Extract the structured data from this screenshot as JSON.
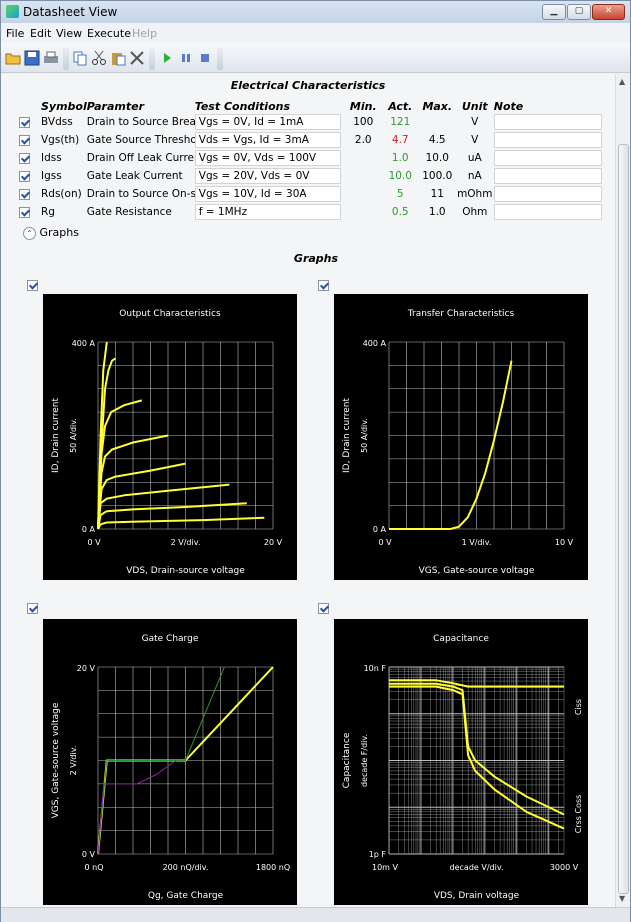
{
  "window": {
    "title": "Datasheet View"
  },
  "menu": [
    "File",
    "Edit",
    "View",
    "Execute",
    "Help"
  ],
  "toolbar_icons": [
    "open-folder-icon",
    "save-icon",
    "print-icon",
    "copy-icon",
    "cut-icon",
    "paste-icon",
    "delete-icon",
    "run-icon",
    "pause-icon",
    "stop-icon"
  ],
  "electrical": {
    "title": "Electrical Characteristics",
    "headers": {
      "symbol": "Symbol",
      "parameter": "Paramter",
      "conditions": "Test Conditions",
      "min": "Min.",
      "act": "Act.",
      "max": "Max.",
      "unit": "Unit",
      "note": "Note"
    },
    "rows": [
      {
        "symbol": "BVdss",
        "parameter": "Drain to Source Breakdo···",
        "conditions": "Vgs = 0V, Id = 1mA",
        "min": "100",
        "act": "121",
        "act_status": "pass",
        "max": "",
        "unit": "V",
        "note": ""
      },
      {
        "symbol": "Vgs(th)",
        "parameter": "Gate Source Threshold V···",
        "conditions": "Vds = Vgs, Id = 3mA",
        "min": "2.0",
        "act": "4.7",
        "act_status": "fail",
        "max": "4.5",
        "unit": "V",
        "note": ""
      },
      {
        "symbol": "Idss",
        "parameter": "Drain Off Leak Current",
        "conditions": "Vgs = 0V, Vds = 100V",
        "min": "",
        "act": "1.0",
        "act_status": "pass",
        "max": "10.0",
        "unit": "uA",
        "note": ""
      },
      {
        "symbol": "Igss",
        "parameter": "Gate Leak Current",
        "conditions": "Vgs = 20V, Vds = 0V",
        "min": "",
        "act": "10.0",
        "act_status": "pass",
        "max": "100.0",
        "unit": "nA",
        "note": ""
      },
      {
        "symbol": "Rds(on)",
        "parameter": "Drain to Source On-state···",
        "conditions": "Vgs = 10V, Id = 30A",
        "min": "",
        "act": "5",
        "act_status": "pass",
        "max": "11",
        "unit": "mOhm",
        "note": ""
      },
      {
        "symbol": "Rg",
        "parameter": "Gate Resistance",
        "conditions": "f = 1MHz",
        "min": "",
        "act": "0.5",
        "act_status": "pass",
        "max": "1.0",
        "unit": "Ohm",
        "note": ""
      }
    ],
    "colors": {
      "pass": "#2e9b2e",
      "fail": "#d42020"
    }
  },
  "graphs_toggle": "Graphs",
  "graphs_title": "Graphs",
  "chart_data": [
    {
      "type": "line",
      "title": "Output Characteristics",
      "xlabel": "VDS, Drain-source voltage",
      "ylabel": "ID, Drain current",
      "ydiv": "50 A/div.",
      "xticks": [
        "0 V",
        "2 V/div.",
        "20 V"
      ],
      "yticks": [
        "400 A",
        "0 A"
      ],
      "xlim": [
        0,
        20
      ],
      "ylim": [
        0,
        400
      ],
      "color": "#ffff33",
      "series": [
        {
          "x": [
            0,
            0.3,
            0.6,
            1.0
          ],
          "y": [
            0,
            200,
            340,
            400
          ]
        },
        {
          "x": [
            0,
            0.4,
            0.8,
            1.2,
            1.6,
            2.0
          ],
          "y": [
            0,
            180,
            300,
            340,
            360,
            365
          ]
        },
        {
          "x": [
            0,
            0.4,
            0.8,
            1.5,
            3.0,
            5.0
          ],
          "y": [
            0,
            160,
            220,
            250,
            265,
            275
          ]
        },
        {
          "x": [
            0,
            0.4,
            0.8,
            1.6,
            4.0,
            8.0
          ],
          "y": [
            0,
            120,
            155,
            170,
            185,
            200
          ]
        },
        {
          "x": [
            0,
            0.4,
            1.0,
            2.0,
            6.0,
            10.0
          ],
          "y": [
            0,
            85,
            105,
            112,
            125,
            140
          ]
        },
        {
          "x": [
            0,
            0.3,
            1.0,
            3.0,
            8.0,
            15.0
          ],
          "y": [
            0,
            55,
            65,
            72,
            82,
            95
          ]
        },
        {
          "x": [
            0,
            0.3,
            1.0,
            4.0,
            10.0,
            17.0
          ],
          "y": [
            0,
            30,
            38,
            42,
            47,
            55
          ]
        },
        {
          "x": [
            0,
            0.3,
            1.0,
            5.0,
            12.0,
            19.0
          ],
          "y": [
            0,
            10,
            14,
            16,
            19,
            24
          ]
        }
      ]
    },
    {
      "type": "line",
      "title": "Transfer Characteristics",
      "xlabel": "VGS, Gate-source voltage",
      "ylabel": "ID, Drain current",
      "ydiv": "50 A/div.",
      "xticks": [
        "0 V",
        "1 V/div.",
        "10 V"
      ],
      "yticks": [
        "400 A",
        "0 A"
      ],
      "xlim": [
        0,
        10
      ],
      "ylim": [
        0,
        400
      ],
      "color": "#ffff33",
      "series": [
        {
          "x": [
            0,
            3.5,
            4.0,
            4.5,
            5.0,
            5.5,
            6.0,
            6.5,
            7.0
          ],
          "y": [
            0,
            0,
            5,
            25,
            65,
            120,
            190,
            270,
            360
          ]
        }
      ]
    },
    {
      "type": "line",
      "title": "Gate Charge",
      "xlabel": "Qg, Gate Charge",
      "ylabel": "VGS, Gate-source voltage",
      "ydiv": "2 V/div.",
      "xticks": [
        "0 nQ",
        "200 nQ/div.",
        "1800 nQ"
      ],
      "yticks": [
        "20 V",
        "0 V"
      ],
      "xlim": [
        0,
        1800
      ],
      "ylim": [
        0,
        20
      ],
      "series": [
        {
          "color": "#ffff33",
          "x": [
            0,
            90,
            900,
            1800
          ],
          "y": [
            0,
            10,
            10,
            20
          ]
        },
        {
          "color": "#2f8f2f",
          "x": [
            0,
            90,
            900,
            1300
          ],
          "y": [
            0,
            10,
            10,
            20
          ]
        },
        {
          "color": "#8a2aa0",
          "x": [
            0,
            60,
            400,
            600,
            800
          ],
          "y": [
            0,
            7.5,
            7.5,
            8.5,
            10
          ]
        }
      ]
    },
    {
      "type": "line",
      "title": "Capacitance",
      "xlabel": "VDS, Drain voltage",
      "ylabel": "Capacitance",
      "ydiv": "decade F/div.",
      "xticks": [
        "10m V",
        "decade V/div.",
        "3000 V"
      ],
      "yticks": [
        "10n F",
        "1p F"
      ],
      "xlim": [
        0.01,
        3000
      ],
      "ylim": [
        1e-12,
        1e-08
      ],
      "xscale": "log",
      "yscale": "log",
      "legend": [
        "Ciss",
        "Crss Coss"
      ],
      "color": "#ffff33",
      "series": [
        {
          "name": "Ciss",
          "x": [
            0.01,
            0.3,
            1,
            3,
            3000
          ],
          "y": [
            5.2e-09,
            5.2e-09,
            4.5e-09,
            3.8e-09,
            3.8e-09
          ]
        },
        {
          "x": [
            0.01,
            0.3,
            1,
            2,
            3,
            5,
            20,
            200,
            3000
          ],
          "y": [
            4.4e-09,
            4.4e-09,
            3.8e-09,
            3.2e-09,
            2e-10,
            1e-10,
            4.5e-11,
            1.7e-11,
            7e-12
          ]
        },
        {
          "x": [
            0.01,
            0.3,
            1,
            2,
            3,
            5,
            20,
            200,
            3000
          ],
          "y": [
            3.8e-09,
            3.8e-09,
            3.2e-09,
            2.6e-09,
            1.3e-10,
            6e-11,
            2.4e-11,
            8e-12,
            3.5e-12
          ]
        }
      ]
    }
  ]
}
